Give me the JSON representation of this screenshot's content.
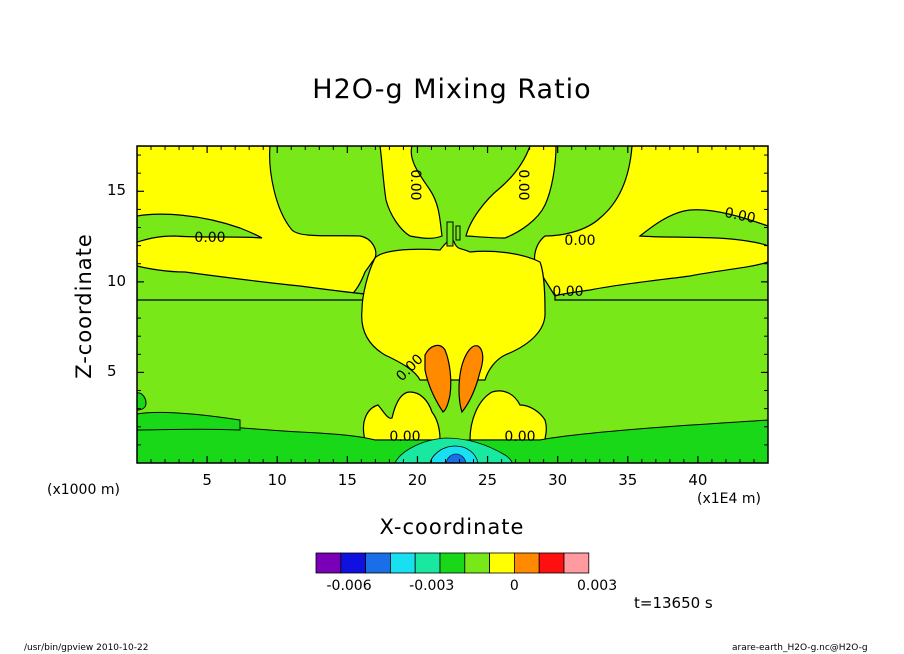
{
  "chart_data": {
    "type": "heatmap",
    "title": "H2O-g Mixing Ratio",
    "xlabel": "X-coordinate",
    "ylabel": "Z-coordinate",
    "xlim": [
      0,
      45
    ],
    "ylim": [
      0,
      17.5
    ],
    "x_ticks": [
      5,
      10,
      15,
      20,
      25,
      30,
      35,
      40
    ],
    "y_ticks": [
      5,
      10,
      15
    ],
    "x_unit_left": "(x1000 m)",
    "x_unit_right": "(x1E4 m)",
    "contour_labels": [
      "0.00",
      "0.00",
      "0.00",
      "0.00",
      "0.00",
      "0.00",
      "0.00",
      "0.00",
      "0.00"
    ],
    "colorbar": {
      "colors": [
        "#7a00b8",
        "#1010e0",
        "#1a6fe8",
        "#18e0f0",
        "#18e8a0",
        "#18d818",
        "#78e818",
        "#ffff00",
        "#ff8a00",
        "#ff1010",
        "#ff9aa0"
      ],
      "tick_labels": [
        "-0.006",
        "-0.003",
        "0",
        "0.003"
      ],
      "tick_values": [
        -0.006,
        -0.003,
        0,
        0.003
      ]
    },
    "time_label": "t=13650 s"
  },
  "footer": {
    "left": "/usr/bin/gpview   2010-10-22",
    "right": "arare-earth_H2O-g.nc@H2O-g"
  }
}
